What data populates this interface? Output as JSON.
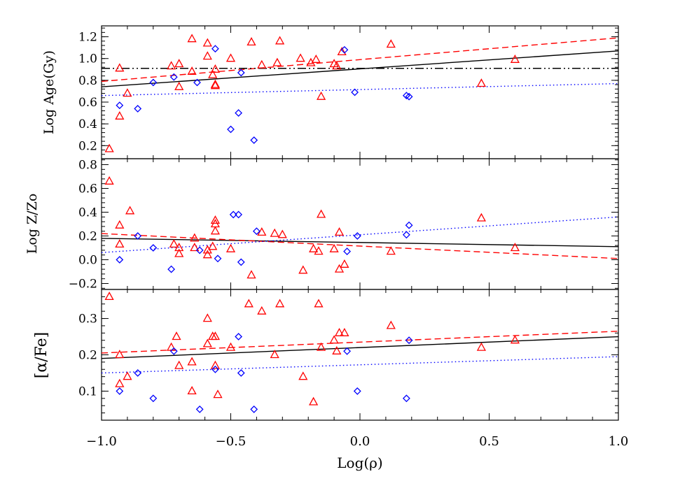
{
  "chart_data": {
    "type": "scatter",
    "xlabel": "Log(ρ)",
    "xlim": [
      -1.0,
      1.0
    ],
    "x_ticks": [
      "−1.0",
      "−0.5",
      "0.0",
      "0.5",
      "1.0"
    ],
    "colors": {
      "triangle": "#ff0000",
      "diamond": "#0000ff",
      "fit": "#000000"
    },
    "panels": [
      {
        "ylabel": "Log Age(Gy)",
        "ylim": [
          0.08,
          1.3
        ],
        "y_ticks": [
          "0.2",
          "0.4",
          "0.6",
          "0.8",
          "1.0",
          "1.2"
        ],
        "y_tick_values": [
          0.2,
          0.4,
          0.6,
          0.8,
          1.0,
          1.2
        ],
        "series": [
          {
            "marker": "triangle",
            "color": "#ff0000",
            "points": [
              [
                -0.97,
                0.17
              ],
              [
                -0.93,
                0.91
              ],
              [
                -0.93,
                0.47
              ],
              [
                -0.9,
                0.68
              ],
              [
                -0.73,
                0.93
              ],
              [
                -0.7,
                0.95
              ],
              [
                -0.7,
                0.74
              ],
              [
                -0.65,
                1.18
              ],
              [
                -0.65,
                0.88
              ],
              [
                -0.59,
                1.14
              ],
              [
                -0.59,
                1.02
              ],
              [
                -0.57,
                0.85
              ],
              [
                -0.56,
                0.9
              ],
              [
                -0.56,
                0.76
              ],
              [
                -0.56,
                0.75
              ],
              [
                -0.5,
                1.0
              ],
              [
                -0.42,
                1.15
              ],
              [
                -0.38,
                0.94
              ],
              [
                -0.32,
                0.96
              ],
              [
                -0.31,
                1.16
              ],
              [
                -0.23,
                1.0
              ],
              [
                -0.19,
                0.96
              ],
              [
                -0.17,
                0.99
              ],
              [
                -0.15,
                0.65
              ],
              [
                -0.1,
                0.95
              ],
              [
                -0.09,
                0.93
              ],
              [
                -0.07,
                1.06
              ],
              [
                0.12,
                1.13
              ],
              [
                0.47,
                0.77
              ],
              [
                0.6,
                0.99
              ]
            ]
          },
          {
            "marker": "diamond",
            "color": "#0000ff",
            "points": [
              [
                -0.93,
                0.57
              ],
              [
                -0.86,
                0.54
              ],
              [
                -0.8,
                0.78
              ],
              [
                -0.72,
                0.83
              ],
              [
                -0.63,
                0.78
              ],
              [
                -0.56,
                1.09
              ],
              [
                -0.5,
                0.35
              ],
              [
                -0.47,
                0.5
              ],
              [
                -0.46,
                0.87
              ],
              [
                -0.41,
                0.25
              ],
              [
                -0.06,
                1.08
              ],
              [
                -0.02,
                0.69
              ],
              [
                0.18,
                0.66
              ],
              [
                0.19,
                0.65
              ]
            ]
          }
        ],
        "lines": [
          {
            "style": "solid",
            "color": "#000000",
            "x": [
              -1.0,
              1.0
            ],
            "y": [
              0.74,
              1.07
            ]
          },
          {
            "style": "dashed",
            "color": "#ff0000",
            "x": [
              -1.0,
              1.0
            ],
            "y": [
              0.79,
              1.19
            ]
          },
          {
            "style": "dotted",
            "color": "#0000ff",
            "x": [
              -1.0,
              1.0
            ],
            "y": [
              0.66,
              0.77
            ]
          },
          {
            "style": "dash-dot-dot",
            "color": "#000000",
            "x": [
              -1.0,
              1.0
            ],
            "y": [
              0.91,
              0.91
            ]
          }
        ]
      },
      {
        "ylabel": "Log Z/Zo",
        "ylim": [
          -0.25,
          0.85
        ],
        "y_ticks": [
          "−0.2",
          "0.0",
          "0.2",
          "0.4",
          "0.6",
          "0.8"
        ],
        "y_tick_values": [
          -0.2,
          0.0,
          0.2,
          0.4,
          0.6,
          0.8
        ],
        "series": [
          {
            "marker": "triangle",
            "color": "#ff0000",
            "points": [
              [
                -0.97,
                0.66
              ],
              [
                -0.93,
                0.29
              ],
              [
                -0.93,
                0.13
              ],
              [
                -0.89,
                0.41
              ],
              [
                -0.72,
                0.13
              ],
              [
                -0.7,
                0.1
              ],
              [
                -0.7,
                0.05
              ],
              [
                -0.64,
                0.18
              ],
              [
                -0.64,
                0.1
              ],
              [
                -0.59,
                0.08
              ],
              [
                -0.59,
                0.04
              ],
              [
                -0.57,
                0.11
              ],
              [
                -0.56,
                0.33
              ],
              [
                -0.56,
                0.3
              ],
              [
                -0.56,
                0.24
              ],
              [
                -0.5,
                0.09
              ],
              [
                -0.42,
                -0.13
              ],
              [
                -0.38,
                0.23
              ],
              [
                -0.33,
                0.22
              ],
              [
                -0.3,
                0.21
              ],
              [
                -0.22,
                -0.09
              ],
              [
                -0.18,
                0.09
              ],
              [
                -0.16,
                0.07
              ],
              [
                -0.15,
                0.38
              ],
              [
                -0.1,
                0.09
              ],
              [
                -0.08,
                -0.08
              ],
              [
                -0.08,
                0.23
              ],
              [
                -0.06,
                -0.04
              ],
              [
                0.12,
                0.07
              ],
              [
                0.47,
                0.35
              ],
              [
                0.6,
                0.1
              ]
            ]
          },
          {
            "marker": "diamond",
            "color": "#0000ff",
            "points": [
              [
                -0.93,
                0.0
              ],
              [
                -0.86,
                0.2
              ],
              [
                -0.8,
                0.1
              ],
              [
                -0.73,
                -0.08
              ],
              [
                -0.62,
                0.08
              ],
              [
                -0.55,
                0.01
              ],
              [
                -0.49,
                0.38
              ],
              [
                -0.47,
                0.38
              ],
              [
                -0.46,
                -0.02
              ],
              [
                -0.4,
                0.24
              ],
              [
                -0.05,
                0.07
              ],
              [
                -0.01,
                0.2
              ],
              [
                0.18,
                0.21
              ],
              [
                0.19,
                0.29
              ]
            ]
          }
        ],
        "lines": [
          {
            "style": "solid",
            "color": "#000000",
            "x": [
              -1.0,
              1.0
            ],
            "y": [
              0.18,
              0.11
            ]
          },
          {
            "style": "dashed",
            "color": "#ff0000",
            "x": [
              -1.0,
              1.0
            ],
            "y": [
              0.22,
              0.01
            ]
          },
          {
            "style": "dotted",
            "color": "#0000ff",
            "x": [
              -1.0,
              1.0
            ],
            "y": [
              0.06,
              0.36
            ]
          }
        ]
      },
      {
        "ylabel": "[α/Fe]",
        "ylim": [
          0.02,
          0.38
        ],
        "y_ticks": [
          "0.1",
          "0.2",
          "0.3"
        ],
        "y_tick_values": [
          0.1,
          0.2,
          0.3
        ],
        "series": [
          {
            "marker": "triangle",
            "color": "#ff0000",
            "points": [
              [
                -0.97,
                0.36
              ],
              [
                -0.93,
                0.2
              ],
              [
                -0.93,
                0.12
              ],
              [
                -0.9,
                0.14
              ],
              [
                -0.73,
                0.22
              ],
              [
                -0.71,
                0.25
              ],
              [
                -0.7,
                0.17
              ],
              [
                -0.65,
                0.18
              ],
              [
                -0.65,
                0.1
              ],
              [
                -0.59,
                0.3
              ],
              [
                -0.59,
                0.23
              ],
              [
                -0.57,
                0.25
              ],
              [
                -0.56,
                0.25
              ],
              [
                -0.56,
                0.17
              ],
              [
                -0.55,
                0.09
              ],
              [
                -0.5,
                0.22
              ],
              [
                -0.43,
                0.34
              ],
              [
                -0.38,
                0.32
              ],
              [
                -0.33,
                0.2
              ],
              [
                -0.31,
                0.34
              ],
              [
                -0.22,
                0.14
              ],
              [
                -0.18,
                0.07
              ],
              [
                -0.16,
                0.34
              ],
              [
                -0.15,
                0.22
              ],
              [
                -0.1,
                0.24
              ],
              [
                -0.09,
                0.21
              ],
              [
                -0.08,
                0.26
              ],
              [
                -0.06,
                0.26
              ],
              [
                0.12,
                0.28
              ],
              [
                0.47,
                0.22
              ],
              [
                0.6,
                0.24
              ]
            ]
          },
          {
            "marker": "diamond",
            "color": "#0000ff",
            "points": [
              [
                -0.93,
                0.1
              ],
              [
                -0.86,
                0.15
              ],
              [
                -0.8,
                0.08
              ],
              [
                -0.72,
                0.21
              ],
              [
                -0.62,
                0.05
              ],
              [
                -0.56,
                0.16
              ],
              [
                -0.47,
                0.25
              ],
              [
                -0.46,
                0.15
              ],
              [
                -0.41,
                0.05
              ],
              [
                -0.05,
                0.21
              ],
              [
                -0.01,
                0.1
              ],
              [
                0.18,
                0.08
              ],
              [
                0.19,
                0.24
              ]
            ]
          }
        ],
        "lines": [
          {
            "style": "solid",
            "color": "#000000",
            "x": [
              -1.0,
              1.0
            ],
            "y": [
              0.19,
              0.25
            ]
          },
          {
            "style": "dashed",
            "color": "#ff0000",
            "x": [
              -1.0,
              1.0
            ],
            "y": [
              0.205,
              0.265
            ]
          },
          {
            "style": "dotted",
            "color": "#0000ff",
            "x": [
              -1.0,
              1.0
            ],
            "y": [
              0.15,
              0.195
            ]
          }
        ]
      }
    ]
  }
}
